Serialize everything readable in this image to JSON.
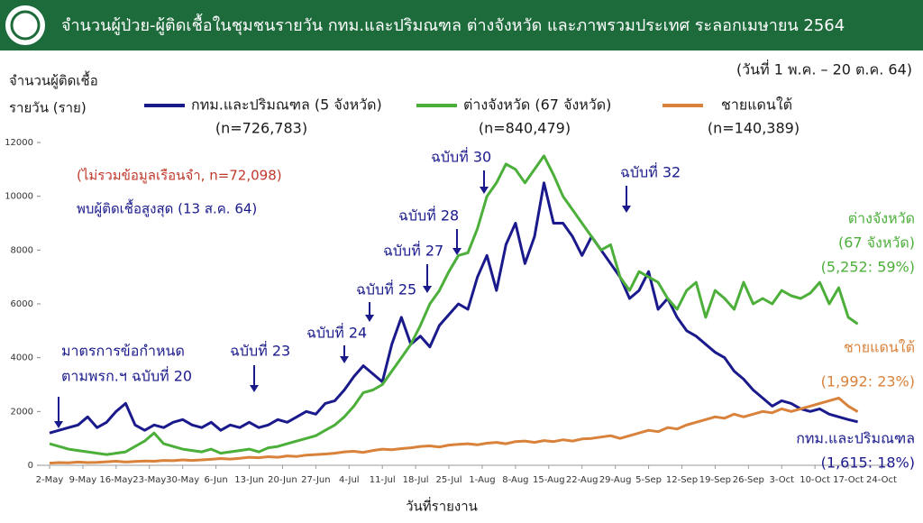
{
  "header": {
    "title": "จำนวนผู้ป่วย-ผู้ติดเชื้อในชุมชนรายวัน กทม.และปริมณฑล ต่างจังหวัด และภาพรวมประเทศ ระลอกเมษายน 2564"
  },
  "chart_data": {
    "type": "line",
    "date_range": "(วันที่ 1 พ.ค. – 20 ต.ค. 64)",
    "y_label": [
      "จำนวนผู้ติดเชื้อ",
      "รายวัน (ราย)"
    ],
    "x_label": "วันที่รายงาน",
    "x": [
      "2-May",
      "4-May",
      "6-May",
      "8-May",
      "10-May",
      "12-May",
      "14-May",
      "16-May",
      "18-May",
      "20-May",
      "22-May",
      "24-May",
      "26-May",
      "28-May",
      "30-May",
      "1-Jun",
      "3-Jun",
      "5-Jun",
      "7-Jun",
      "9-Jun",
      "11-Jun",
      "13-Jun",
      "15-Jun",
      "17-Jun",
      "19-Jun",
      "21-Jun",
      "23-Jun",
      "25-Jun",
      "27-Jun",
      "29-Jun",
      "1-Jul",
      "3-Jul",
      "5-Jul",
      "7-Jul",
      "9-Jul",
      "11-Jul",
      "13-Jul",
      "15-Jul",
      "17-Jul",
      "19-Jul",
      "21-Jul",
      "23-Jul",
      "25-Jul",
      "27-Jul",
      "29-Jul",
      "31-Jul",
      "2-Aug",
      "4-Aug",
      "6-Aug",
      "8-Aug",
      "10-Aug",
      "12-Aug",
      "14-Aug",
      "16-Aug",
      "18-Aug",
      "20-Aug",
      "22-Aug",
      "24-Aug",
      "26-Aug",
      "28-Aug",
      "30-Aug",
      "1-Sep",
      "3-Sep",
      "5-Sep",
      "7-Sep",
      "9-Sep",
      "11-Sep",
      "13-Sep",
      "15-Sep",
      "17-Sep",
      "19-Sep",
      "21-Sep",
      "23-Sep",
      "25-Sep",
      "27-Sep",
      "29-Sep",
      "1-Oct",
      "3-Oct",
      "5-Oct",
      "7-Oct",
      "9-Oct",
      "11-Oct",
      "13-Oct",
      "15-Oct",
      "17-Oct",
      "19-Oct"
    ],
    "xlim": [
      "2-May",
      "24-Oct"
    ],
    "xticks": [
      "2-May",
      "9-May",
      "16-May",
      "23-May",
      "30-May",
      "6-Jun",
      "13-Jun",
      "20-Jun",
      "27-Jun",
      "4-Jul",
      "11-Jul",
      "18-Jul",
      "25-Jul",
      "1-Aug",
      "8-Aug",
      "15-Aug",
      "22-Aug",
      "29-Aug",
      "5-Sep",
      "12-Sep",
      "19-Sep",
      "26-Sep",
      "3-Oct",
      "10-Oct",
      "17-Oct",
      "24-Oct"
    ],
    "ylim": [
      0,
      12000
    ],
    "yticks": [
      0,
      2000,
      4000,
      6000,
      8000,
      10000,
      12000
    ],
    "series": [
      {
        "name": "กทม.และปริมณฑล (5 จังหวัด)",
        "n_label": "(n=726,783)",
        "color": "#1a1a8c",
        "values": [
          1200,
          1300,
          1400,
          1500,
          1800,
          1400,
          1600,
          2000,
          2300,
          1500,
          1300,
          1500,
          1400,
          1600,
          1700,
          1500,
          1400,
          1600,
          1300,
          1500,
          1400,
          1600,
          1400,
          1500,
          1700,
          1600,
          1800,
          2000,
          1900,
          2300,
          2400,
          2800,
          3300,
          3700,
          3400,
          3100,
          4500,
          5500,
          4500,
          4800,
          4400,
          5200,
          5600,
          6000,
          5800,
          7000,
          7800,
          6500,
          8200,
          9000,
          7500,
          8500,
          10500,
          9000,
          9000,
          8500,
          7800,
          8500,
          8000,
          7500,
          7000,
          6200,
          6500,
          7200,
          5800,
          6200,
          5500,
          5000,
          4800,
          4500,
          4200,
          4000,
          3500,
          3200,
          2800,
          2500,
          2200,
          2400,
          2300,
          2100,
          2000,
          2100,
          1900,
          1800,
          1700,
          1615
        ]
      },
      {
        "name": "ต่างจังหวัด (67 จังหวัด)",
        "n_label": "(n=840,479)",
        "color": "#4caf3a",
        "values": [
          800,
          700,
          600,
          550,
          500,
          450,
          400,
          450,
          500,
          700,
          900,
          1200,
          800,
          700,
          600,
          550,
          500,
          600,
          450,
          500,
          550,
          600,
          500,
          650,
          700,
          800,
          900,
          1000,
          1100,
          1300,
          1500,
          1800,
          2200,
          2700,
          2800,
          3000,
          3500,
          4000,
          4500,
          5200,
          6000,
          6500,
          7200,
          7800,
          7900,
          8800,
          10000,
          10500,
          11200,
          11000,
          10500,
          11000,
          11500,
          10800,
          10000,
          9500,
          9000,
          8500,
          8000,
          8200,
          7000,
          6500,
          7200,
          7000,
          6800,
          6200,
          5800,
          6500,
          6800,
          5500,
          6500,
          6200,
          5800,
          6800,
          6000,
          6200,
          6000,
          6500,
          6300,
          6200,
          6400,
          6800,
          6000,
          6600,
          5500,
          5252
        ]
      },
      {
        "name": "ชายแดนใต้",
        "n_label": "(n=140,389)",
        "color": "#d9823b",
        "values": [
          80,
          100,
          90,
          120,
          100,
          110,
          130,
          150,
          120,
          140,
          160,
          150,
          180,
          170,
          200,
          180,
          200,
          220,
          250,
          230,
          260,
          300,
          280,
          320,
          300,
          350,
          330,
          380,
          400,
          420,
          450,
          500,
          520,
          480,
          550,
          600,
          580,
          620,
          650,
          700,
          720,
          680,
          750,
          780,
          800,
          760,
          820,
          850,
          800,
          880,
          900,
          850,
          920,
          880,
          950,
          900,
          980,
          1000,
          1050,
          1100,
          1000,
          1100,
          1200,
          1300,
          1250,
          1400,
          1350,
          1500,
          1600,
          1700,
          1800,
          1750,
          1900,
          1800,
          1900,
          2000,
          1950,
          2100,
          2000,
          2100,
          2200,
          2300,
          2400,
          2500,
          2200,
          1992
        ]
      }
    ],
    "notes": [
      "(ไม่รวมข้อมูลเรือนจำ, n=72,098)",
      "พบผู้ติดเชื้อสูงสุด (13 ส.ค. 64)"
    ],
    "annotations": [
      [
        "มาตรการข้อกำหนด",
        "ตามพรก.ฯ ฉบับที่ 20"
      ],
      [
        "ฉบับที่ 23"
      ],
      [
        "ฉบับที่ 24"
      ],
      [
        "ฉบับที่ 25"
      ],
      [
        "ฉบับที่ 27"
      ],
      [
        "ฉบับที่ 28"
      ],
      [
        "ฉบับที่ 30"
      ],
      [
        "ฉบับที่ 32"
      ]
    ],
    "end_labels": [
      [
        "ต่างจังหวัด",
        "(67 จังหวัด)",
        "(5,252: 59%)"
      ],
      [
        "ชายแดนใต้",
        "(1,992: 23%)"
      ],
      [
        "กทม.และปริมณฑล",
        "(1,615: 18%)"
      ]
    ]
  }
}
